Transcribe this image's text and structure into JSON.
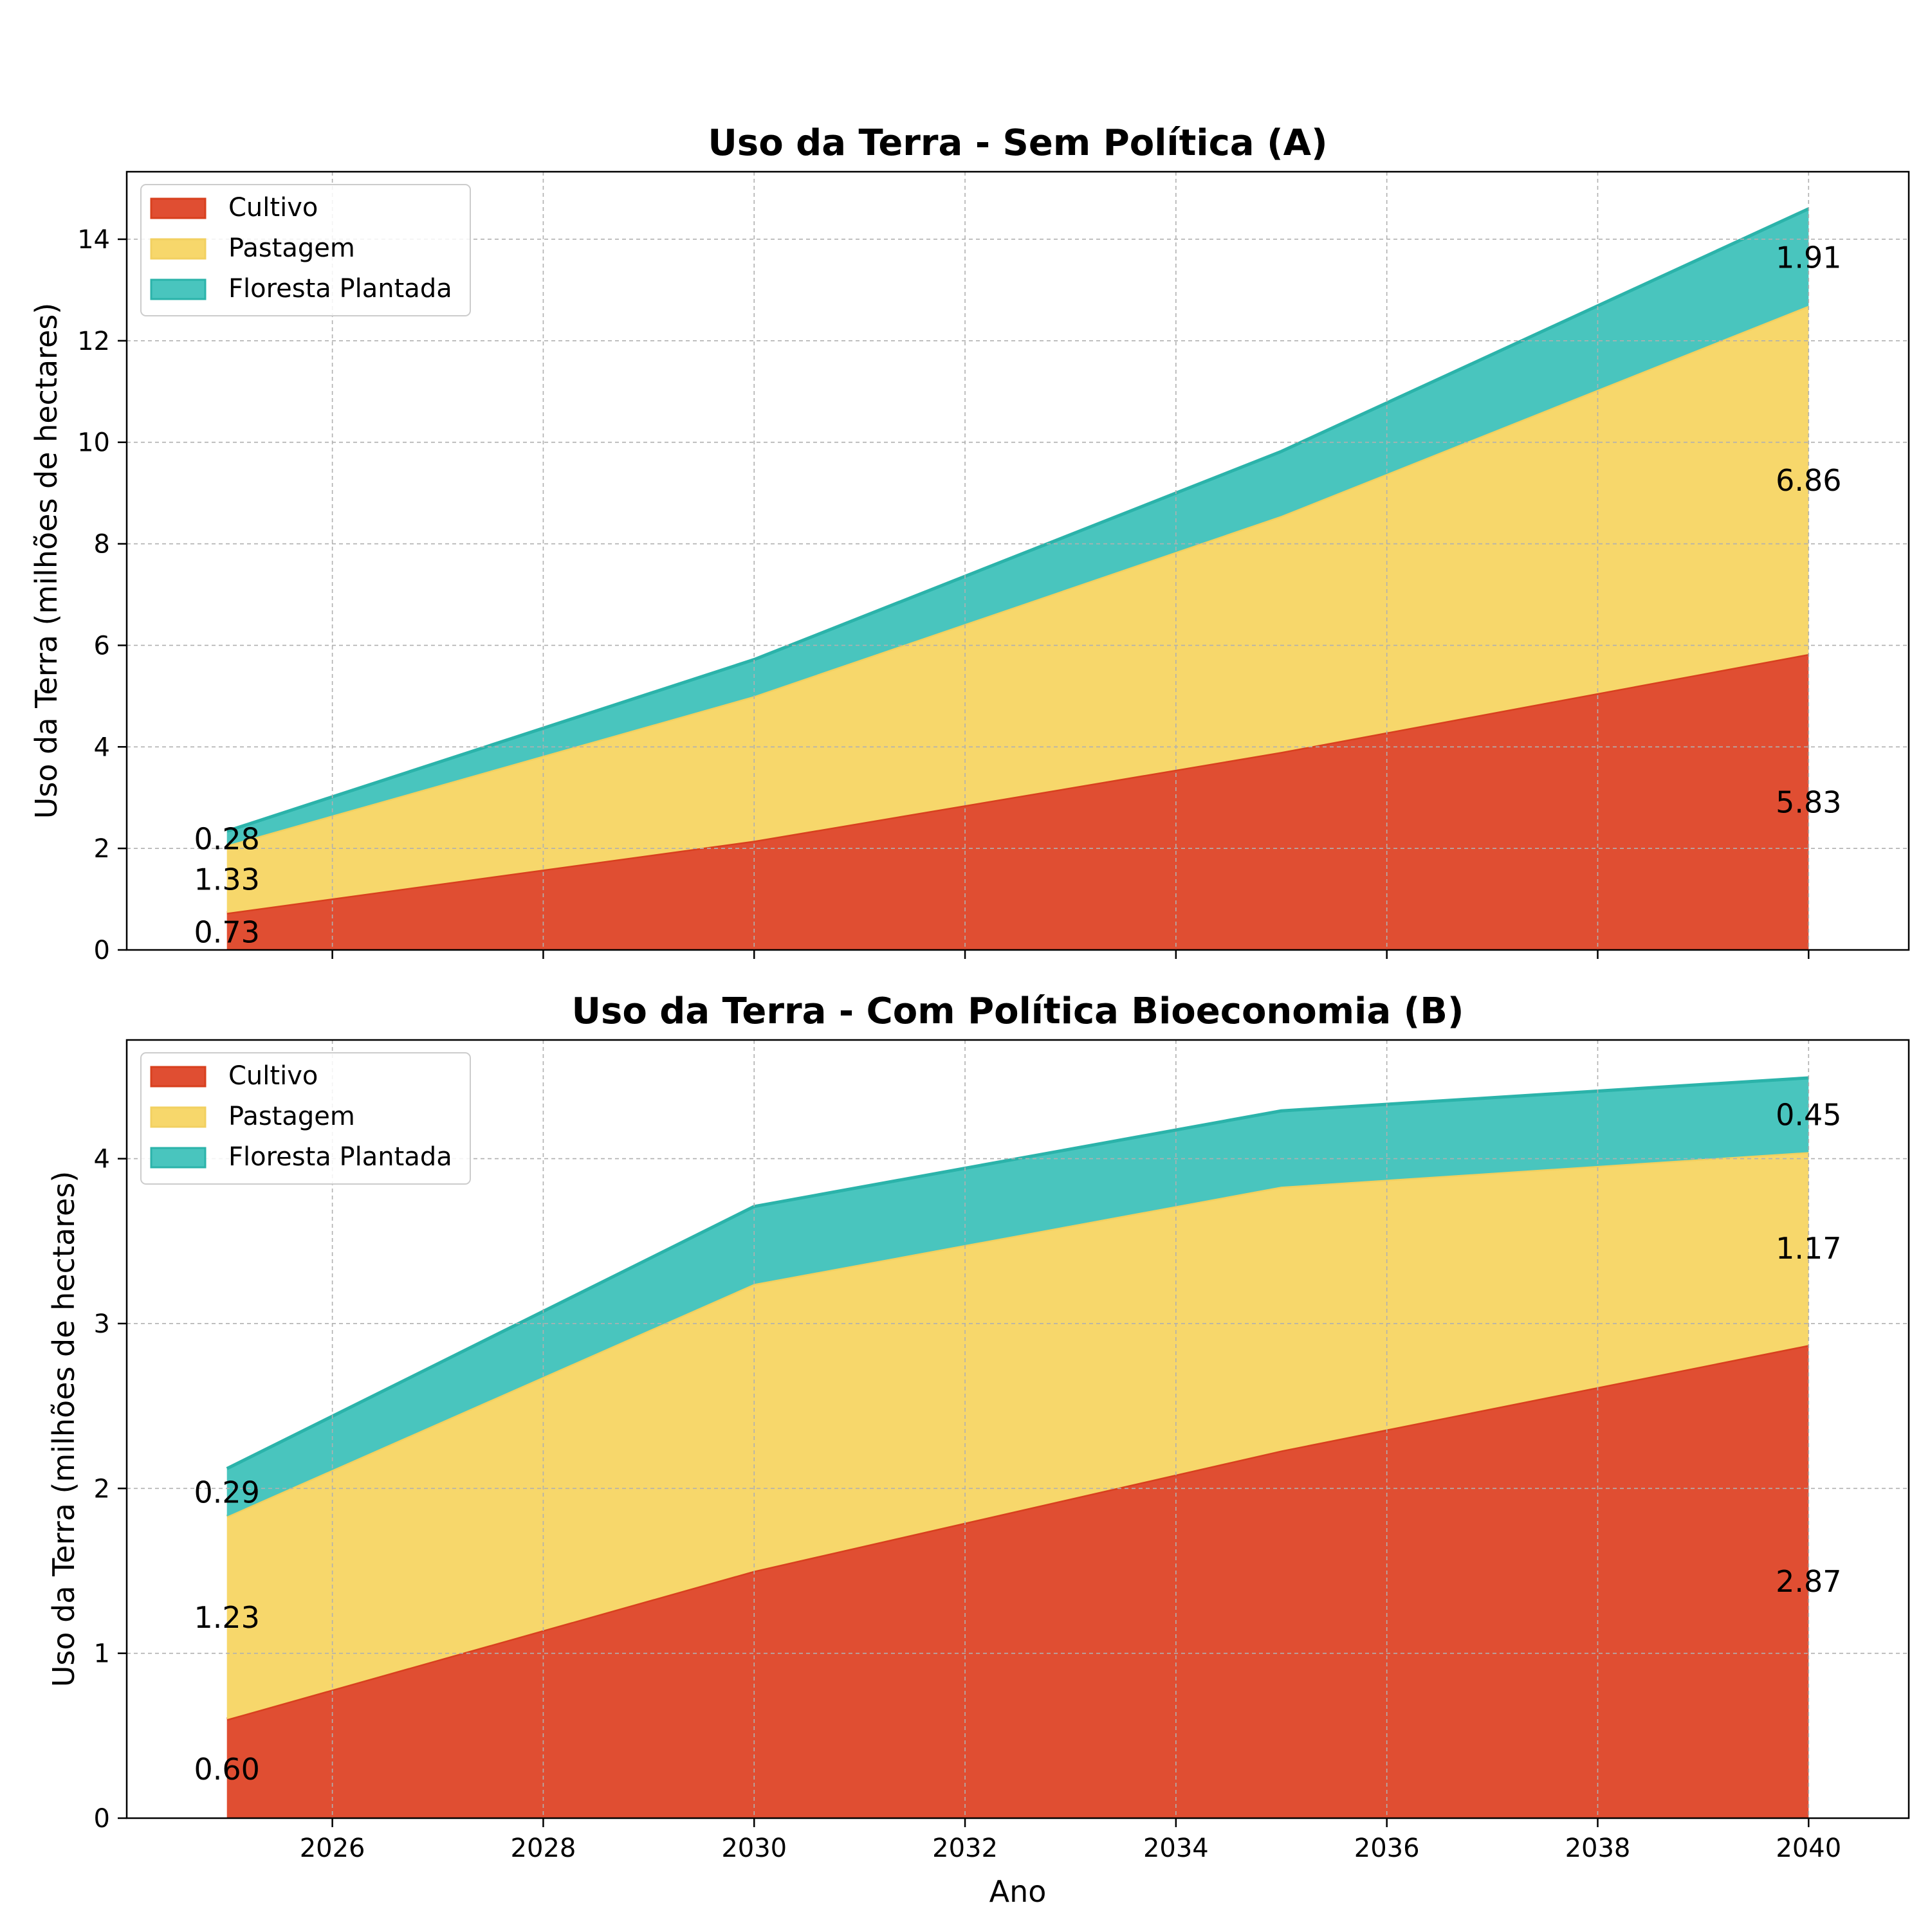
{
  "chart_data": [
    {
      "type": "area",
      "stacked": true,
      "title": "Uso da Terra - Sem Política (A)",
      "ylabel": "Uso da Terra (milhões de hectares)",
      "xlabel": "",
      "xlim": [
        2024.05,
        2040.95
      ],
      "ylim": [
        0,
        15.33
      ],
      "xticks": [
        2026,
        2028,
        2030,
        2032,
        2034,
        2036,
        2038,
        2040
      ],
      "yticks": [
        0,
        2,
        4,
        6,
        8,
        10,
        12,
        14
      ],
      "show_xtick_labels": false,
      "grid": true,
      "legend": "top-left",
      "x": [
        2025,
        2030,
        2035,
        2040
      ],
      "series": [
        {
          "name": "Cultivo",
          "color": "#E04E32",
          "edge": "#D8401E",
          "values": [
            0.73,
            2.15,
            3.9,
            5.83
          ]
        },
        {
          "name": "Pastagem",
          "color": "#F7D76B",
          "edge": "#F2D060",
          "values": [
            1.33,
            2.85,
            4.65,
            6.86
          ]
        },
        {
          "name": "Floresta Plantada",
          "color": "#49C5BE",
          "edge": "#2BB3AA",
          "values": [
            0.28,
            0.72,
            1.27,
            1.91
          ]
        }
      ],
      "annotations": [
        {
          "text": "0.73",
          "x": 2025,
          "y": 0.36
        },
        {
          "text": "1.33",
          "x": 2025,
          "y": 1.4
        },
        {
          "text": "0.28",
          "x": 2025,
          "y": 2.2
        },
        {
          "text": "5.83",
          "x": 2040,
          "y": 2.92
        },
        {
          "text": "6.86",
          "x": 2040,
          "y": 9.26
        },
        {
          "text": "1.91",
          "x": 2040,
          "y": 13.65
        }
      ]
    },
    {
      "type": "area",
      "stacked": true,
      "title": "Uso da Terra - Com Política Bioeconomia (B)",
      "ylabel": "Uso da Terra (milhões de hectares)",
      "xlabel": "Ano",
      "xlim": [
        2024.05,
        2040.95
      ],
      "ylim": [
        0,
        4.72
      ],
      "xticks": [
        2026,
        2028,
        2030,
        2032,
        2034,
        2036,
        2038,
        2040
      ],
      "yticks": [
        0,
        1,
        2,
        3,
        4
      ],
      "show_xtick_labels": true,
      "grid": true,
      "legend": "top-left",
      "x": [
        2025,
        2030,
        2035,
        2040
      ],
      "series": [
        {
          "name": "Cultivo",
          "color": "#E04E32",
          "edge": "#D8401E",
          "values": [
            0.6,
            1.5,
            2.23,
            2.87
          ]
        },
        {
          "name": "Pastagem",
          "color": "#F7D76B",
          "edge": "#F2D060",
          "values": [
            1.23,
            1.74,
            1.6,
            1.17
          ]
        },
        {
          "name": "Floresta Plantada",
          "color": "#49C5BE",
          "edge": "#2BB3AA",
          "values": [
            0.29,
            0.47,
            0.46,
            0.45
          ]
        }
      ],
      "annotations": [
        {
          "text": "0.60",
          "x": 2025,
          "y": 0.3
        },
        {
          "text": "1.23",
          "x": 2025,
          "y": 1.22
        },
        {
          "text": "0.29",
          "x": 2025,
          "y": 1.98
        },
        {
          "text": "2.87",
          "x": 2040,
          "y": 1.44
        },
        {
          "text": "1.17",
          "x": 2040,
          "y": 3.46
        },
        {
          "text": "0.45",
          "x": 2040,
          "y": 4.27
        }
      ]
    }
  ]
}
